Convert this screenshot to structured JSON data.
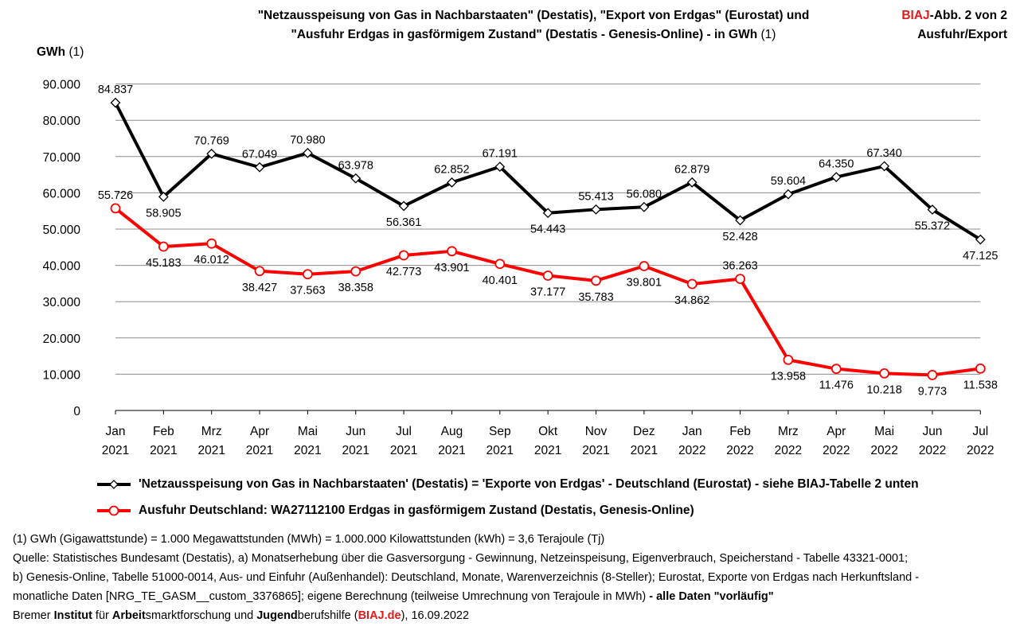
{
  "header": {
    "title_line1": "\"Netzausspeisung von Gas in Nachbarstaaten\" (Destatis), \"Export von Erdgas\" (Eurostat) und",
    "title_line2": "\"Ausfuhr Erdgas in gasförmigem Zustand\" (Destatis - Genesis-Online) - in GWh",
    "title_line2_note": "(1)",
    "corner_brand": "BIAJ",
    "corner_rest": "-Abb. 2 von 2",
    "corner_line2": "Ausfuhr/Export"
  },
  "axis": {
    "unit_bold": "GWh",
    "unit_note": "(1)"
  },
  "chart_data": {
    "type": "line",
    "categories": [
      [
        "Jan",
        "2021"
      ],
      [
        "Feb",
        "2021"
      ],
      [
        "Mrz",
        "2021"
      ],
      [
        "Apr",
        "2021"
      ],
      [
        "Mai",
        "2021"
      ],
      [
        "Jun",
        "2021"
      ],
      [
        "Jul",
        "2021"
      ],
      [
        "Aug",
        "2021"
      ],
      [
        "Sep",
        "2021"
      ],
      [
        "Okt",
        "2021"
      ],
      [
        "Nov",
        "2021"
      ],
      [
        "Dez",
        "2021"
      ],
      [
        "Jan",
        "2022"
      ],
      [
        "Feb",
        "2022"
      ],
      [
        "Mrz",
        "2022"
      ],
      [
        "Apr",
        "2022"
      ],
      [
        "Mai",
        "2022"
      ],
      [
        "Jun",
        "2022"
      ],
      [
        "Jul",
        "2022"
      ]
    ],
    "ylim": [
      0,
      90000
    ],
    "yticks": [
      0,
      10000,
      20000,
      30000,
      40000,
      50000,
      60000,
      70000,
      80000,
      90000
    ],
    "ytick_labels": [
      "0",
      "10.000",
      "20.000",
      "30.000",
      "40.000",
      "50.000",
      "60.000",
      "70.000",
      "80.000",
      "90.000"
    ],
    "grid": true,
    "series": [
      {
        "name": "'Netzausspeisung von Gas in Nachbarstaaten' (Destatis) = 'Exporte von Erdgas' -  Deutschland (Eurostat) - siehe BIAJ-Tabelle 2 unten",
        "color": "#000000",
        "marker": "diamond",
        "values": [
          84837,
          58905,
          70769,
          67049,
          70980,
          63978,
          56361,
          62852,
          67191,
          54443,
          55413,
          56080,
          62879,
          52428,
          59604,
          64350,
          67340,
          55372,
          47125
        ],
        "labels": [
          "84.837",
          "58.905",
          "70.769",
          "67.049",
          "70.980",
          "63.978",
          "56.361",
          "62.852",
          "67.191",
          "54.443",
          "55.413",
          "56.080",
          "62.879",
          "52.428",
          "59.604",
          "64.350",
          "67.340",
          "55.372",
          "47.125"
        ]
      },
      {
        "name": "Ausfuhr Deutschland:  WA27112100 Erdgas in gasförmigem Zustand (Destatis, Genesis-Online)",
        "color": "#ff0000",
        "marker": "circle",
        "values": [
          55726,
          45183,
          46012,
          38427,
          37563,
          38358,
          42773,
          43901,
          40401,
          37177,
          35783,
          39801,
          34862,
          36263,
          13958,
          11476,
          10218,
          9773,
          11538
        ],
        "labels": [
          "55.726",
          "45.183",
          "46.012",
          "38.427",
          "37.563",
          "38.358",
          "42.773",
          "43.901",
          "40.401",
          "37.177",
          "35.783",
          "39.801",
          "34.862",
          "36.263",
          "13.958",
          "11.476",
          "10.218",
          "9.773",
          "11.538"
        ]
      }
    ]
  },
  "notes": {
    "line1": "(1) GWh (Gigawattstunde) = 1.000 Megawattstunden (MWh)  = 1.000.000 Kilowattstunden (kWh) = 3,6 Terajoule (Tj)",
    "line2": "Quelle: Statistisches Bundesamt (Destatis), a) Monatserhebung über die Gasversorgung - Gewinnung, Netzeinspeisung, Eigenverbrauch, Speicherstand - Tabelle 43321-0001;",
    "line3": "b) Genesis-Online, Tabelle 51000-0014, Aus- und Einfuhr (Außenhandel): Deutschland, Monate, Warenverzeichnis (8-Steller); Eurostat, Exporte von Erdgas nach Herkunftsland -",
    "line4_a": "monatliche Daten [NRG_TE_GASM__custom_3376865]; eigene Berechnung (teilweise Umrechnung von Terajoule in MWh)",
    "line4_b": " - alle Daten \"vorläufig\"",
    "line5_a": "Bremer ",
    "line5_b": "Institut",
    "line5_c": " für ",
    "line5_d": "Arbeit",
    "line5_e": "smarktforschung und ",
    "line5_f": "Jugend",
    "line5_g": "berufshilfe (",
    "line5_h": "BIAJ.de",
    "line5_i": "), 16.09.2022"
  }
}
